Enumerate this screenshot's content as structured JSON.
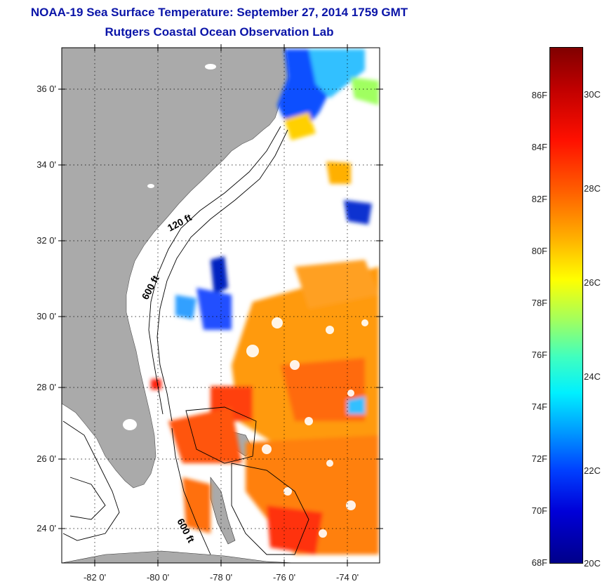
{
  "title": {
    "line1": "NOAA-19 Sea Surface Temperature:  September 27, 2014 1759 GMT",
    "line2": "Rutgers Coastal Ocean Observation Lab"
  },
  "map": {
    "lat_labels": [
      "36 0'",
      "34 0'",
      "32 0'",
      "30 0'",
      "28 0'",
      "26 0'",
      "24 0'"
    ],
    "lon_labels": [
      "-82 0'",
      "-80 0'",
      "-78 0'",
      "-76 0'",
      "-74 0'"
    ],
    "contour_labels": [
      "120 ft",
      "600 ft",
      "600 ft"
    ],
    "colors": {
      "land": "#aaaaaa",
      "cloud": "#ffffff",
      "frame": "#000000"
    }
  },
  "colorbar": {
    "f_labels": [
      "86F",
      "84F",
      "82F",
      "80F",
      "78F",
      "76F",
      "74F",
      "72F",
      "70F",
      "68F"
    ],
    "c_labels": [
      "30C",
      "28C",
      "26C",
      "24C",
      "22C",
      "20C"
    ],
    "colors": [
      "#00008a",
      "#0000d8",
      "#0040ff",
      "#00a0ff",
      "#00f0ff",
      "#40ffbf",
      "#a0ff60",
      "#ffff00",
      "#ffb000",
      "#ff6000",
      "#ff1000",
      "#c00000",
      "#800000"
    ]
  }
}
